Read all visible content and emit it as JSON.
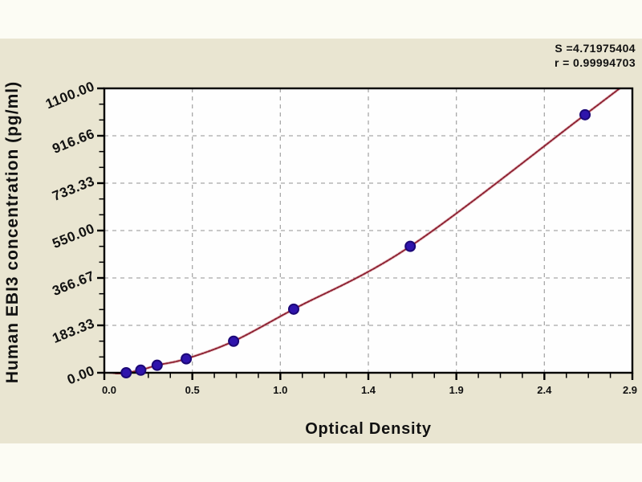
{
  "chart_data": {
    "type": "scatter",
    "title": "",
    "xlabel": "Optical Density",
    "ylabel": "Human EBI3 concentration (pg/ml)",
    "x_tick_labels": [
      "0.0",
      "0.5",
      "1.0",
      "1.4",
      "1.9",
      "2.4",
      "2.9"
    ],
    "y_tick_labels": [
      "0.00",
      "183.33",
      "366.67",
      "550.00",
      "733.33",
      "916.66",
      "1100.00"
    ],
    "xlim": [
      0,
      2.9
    ],
    "ylim": [
      0,
      1100
    ],
    "grid": "dashed lines at major ticks",
    "legend": null,
    "series": [
      {
        "name": "standard-points",
        "marker": "filled-circle",
        "values": [
          [
            0.12,
            0
          ],
          [
            0.2,
            10
          ],
          [
            0.29,
            29
          ],
          [
            0.45,
            54
          ],
          [
            0.71,
            122
          ],
          [
            1.04,
            246
          ],
          [
            1.68,
            489
          ],
          [
            2.64,
            998
          ]
        ]
      }
    ],
    "fit_curve": "smooth increasing fit through points, clipped at y=1100 near x=2.85",
    "annotations": {
      "s_label": "S =4.71975404",
      "r_label": "r = 0.99994703"
    },
    "colors": {
      "band_background": "#e9e5d1",
      "page_background": "#fcfcf4",
      "plot_background": "#fefefe",
      "curve": "#8c2030",
      "curve_halo": "#d4848e",
      "marker_fill": "#2f14ac",
      "marker_edge": "#1c0877",
      "grid": "#a9a9a9",
      "axis": "#000000",
      "text": "#111111"
    }
  }
}
